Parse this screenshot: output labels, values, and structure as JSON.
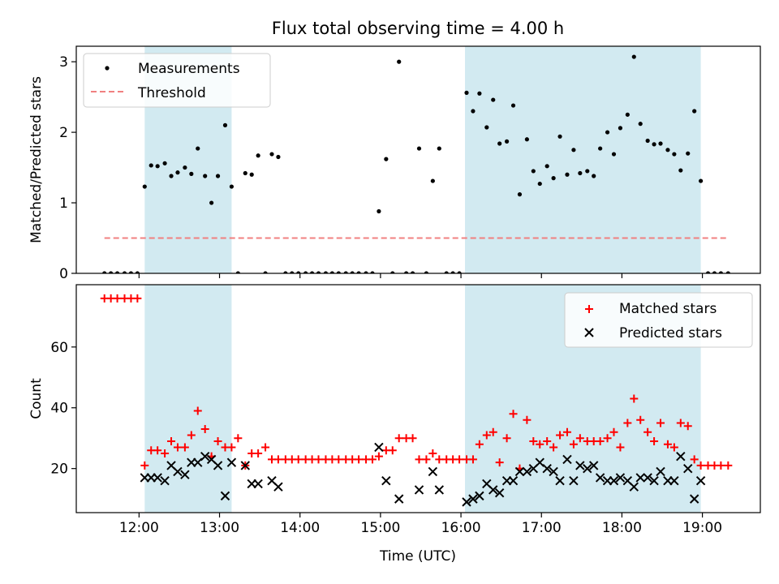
{
  "title": "Flux total observing time = 4.00 h",
  "x_axis": {
    "label": "Time (UTC)",
    "range_hours": [
      11.22,
      19.72
    ],
    "ticks": [
      {
        "hour": 12,
        "label": "12:00"
      },
      {
        "hour": 13,
        "label": "13:00"
      },
      {
        "hour": 14,
        "label": "14:00"
      },
      {
        "hour": 15,
        "label": "15:00"
      },
      {
        "hour": 16,
        "label": "16:00"
      },
      {
        "hour": 17,
        "label": "17:00"
      },
      {
        "hour": 18,
        "label": "18:00"
      },
      {
        "hour": 19,
        "label": "19:00"
      }
    ]
  },
  "shaded_color": "#add8e6",
  "chart_data": [
    {
      "type": "scatter",
      "ylabel": "Matched/Predicted stars",
      "ylim": [
        0,
        3.22
      ],
      "yticks": [
        0,
        1,
        2,
        3
      ],
      "legend": {
        "position": "top-left",
        "entries": [
          "Measurements",
          "Threshold"
        ]
      },
      "shaded_intervals": [
        [
          12.07,
          13.15
        ],
        [
          16.05,
          18.98
        ]
      ],
      "threshold": {
        "name": "Threshold",
        "value": 0.5,
        "x_range": [
          11.57,
          19.33
        ],
        "color": "#f08080"
      },
      "series": [
        {
          "name": "Measurements",
          "color": "#000000",
          "x": [
            11.57,
            11.65,
            11.73,
            11.82,
            11.9,
            11.98,
            12.07,
            12.15,
            12.23,
            12.32,
            12.4,
            12.48,
            12.57,
            12.65,
            12.73,
            12.82,
            12.9,
            12.98,
            13.07,
            13.15,
            13.23,
            13.32,
            13.4,
            13.48,
            13.57,
            13.65,
            13.73,
            13.82,
            13.9,
            13.98,
            14.07,
            14.15,
            14.23,
            14.32,
            14.4,
            14.48,
            14.57,
            14.65,
            14.73,
            14.82,
            14.9,
            14.98,
            15.07,
            15.15,
            15.23,
            15.32,
            15.4,
            15.48,
            15.57,
            15.65,
            15.73,
            15.82,
            15.9,
            15.98,
            16.07,
            16.15,
            16.23,
            16.32,
            16.4,
            16.48,
            16.57,
            16.65,
            16.73,
            16.82,
            16.9,
            16.98,
            17.07,
            17.15,
            17.23,
            17.32,
            17.4,
            17.48,
            17.57,
            17.65,
            17.73,
            17.82,
            17.9,
            17.98,
            18.07,
            18.15,
            18.23,
            18.32,
            18.4,
            18.48,
            18.57,
            18.65,
            18.73,
            18.82,
            18.9,
            18.98,
            19.07,
            19.15,
            19.23,
            19.32
          ],
          "y": [
            0,
            0,
            0,
            0,
            0,
            0,
            1.23,
            1.53,
            1.52,
            1.56,
            1.38,
            1.43,
            1.5,
            1.41,
            1.77,
            1.38,
            1.0,
            1.38,
            2.1,
            1.23,
            0,
            1.42,
            1.4,
            1.67,
            0,
            1.69,
            1.65,
            0,
            0,
            0,
            0,
            0,
            0,
            0,
            0,
            0,
            0,
            0,
            0,
            0,
            0,
            0.88,
            1.62,
            0,
            3.0,
            0,
            0,
            1.77,
            0,
            1.31,
            1.77,
            0,
            0,
            0,
            2.56,
            2.3,
            2.55,
            2.07,
            2.46,
            1.84,
            1.87,
            2.38,
            1.12,
            1.9,
            1.45,
            1.27,
            1.52,
            1.35,
            1.94,
            1.4,
            1.75,
            1.42,
            1.45,
            1.38,
            1.77,
            2.0,
            1.69,
            2.06,
            2.25,
            3.07,
            2.12,
            1.88,
            1.83,
            1.84,
            1.75,
            1.69,
            1.46,
            1.7,
            2.3,
            1.31,
            0,
            0,
            0,
            0
          ]
        }
      ]
    },
    {
      "type": "scatter",
      "xlabel": "Time (UTC)",
      "ylabel": "Count",
      "ylim": [
        5.5,
        80.5
      ],
      "yticks": [
        20,
        40,
        60
      ],
      "legend": {
        "position": "top-right",
        "entries": [
          "Matched stars",
          "Predicted stars"
        ]
      },
      "shaded_intervals": [
        [
          12.07,
          13.15
        ],
        [
          16.05,
          18.98
        ]
      ],
      "series": [
        {
          "name": "Matched stars",
          "color": "#ff0000",
          "marker": "+",
          "x": [
            11.57,
            11.65,
            11.73,
            11.82,
            11.9,
            11.98,
            12.07,
            12.15,
            12.23,
            12.32,
            12.4,
            12.48,
            12.57,
            12.65,
            12.73,
            12.82,
            12.9,
            12.98,
            13.07,
            13.15,
            13.23,
            13.32,
            13.4,
            13.48,
            13.57,
            13.65,
            13.73,
            13.82,
            13.9,
            13.98,
            14.07,
            14.15,
            14.23,
            14.32,
            14.4,
            14.48,
            14.57,
            14.65,
            14.73,
            14.82,
            14.9,
            14.98,
            15.07,
            15.15,
            15.23,
            15.32,
            15.4,
            15.48,
            15.57,
            15.65,
            15.73,
            15.82,
            15.9,
            15.98,
            16.07,
            16.15,
            16.23,
            16.32,
            16.4,
            16.48,
            16.57,
            16.65,
            16.73,
            16.82,
            16.9,
            16.98,
            17.07,
            17.15,
            17.23,
            17.32,
            17.4,
            17.48,
            17.57,
            17.65,
            17.73,
            17.82,
            17.9,
            17.98,
            18.07,
            18.15,
            18.23,
            18.32,
            18.4,
            18.48,
            18.57,
            18.65,
            18.73,
            18.82,
            18.9,
            18.98,
            19.07,
            19.15,
            19.23,
            19.32
          ],
          "y": [
            76,
            76,
            76,
            76,
            76,
            76,
            21,
            26,
            26,
            25,
            29,
            27,
            27,
            31,
            39,
            33,
            24,
            29,
            27,
            27,
            30,
            21,
            25,
            25,
            27,
            23,
            23,
            23,
            23,
            23,
            23,
            23,
            23,
            23,
            23,
            23,
            23,
            23,
            23,
            23,
            23,
            24,
            26,
            26,
            30,
            30,
            30,
            23,
            23,
            25,
            23,
            23,
            23,
            23,
            23,
            23,
            28,
            31,
            32,
            22,
            30,
            38,
            20,
            36,
            29,
            28,
            29,
            27,
            31,
            32,
            28,
            30,
            29,
            29,
            29,
            30,
            32,
            27,
            35,
            43,
            36,
            32,
            29,
            35,
            28,
            27,
            35,
            34,
            23,
            21,
            21,
            21,
            21,
            21
          ]
        },
        {
          "name": "Predicted stars",
          "color": "#000000",
          "marker": "x",
          "x": [
            12.07,
            12.15,
            12.23,
            12.32,
            12.4,
            12.48,
            12.57,
            12.65,
            12.73,
            12.82,
            12.9,
            12.98,
            13.07,
            13.15,
            13.32,
            13.4,
            13.48,
            13.65,
            13.73,
            14.98,
            15.07,
            15.23,
            15.48,
            15.65,
            15.73,
            16.07,
            16.15,
            16.23,
            16.32,
            16.4,
            16.48,
            16.57,
            16.65,
            16.73,
            16.82,
            16.9,
            16.98,
            17.07,
            17.15,
            17.23,
            17.32,
            17.4,
            17.48,
            17.57,
            17.65,
            17.73,
            17.82,
            17.9,
            17.98,
            18.07,
            18.15,
            18.23,
            18.32,
            18.4,
            18.48,
            18.57,
            18.65,
            18.73,
            18.82,
            18.9,
            18.98
          ],
          "y": [
            17,
            17,
            17,
            16,
            21,
            19,
            18,
            22,
            22,
            24,
            23,
            21,
            11,
            22,
            21,
            15,
            15,
            16,
            14,
            27,
            16,
            10,
            13,
            19,
            13,
            9,
            10,
            11,
            15,
            13,
            12,
            16,
            16,
            19,
            19,
            20,
            22,
            20,
            19,
            16,
            23,
            16,
            21,
            20,
            21,
            17,
            16,
            16,
            17,
            16,
            14,
            17,
            17,
            16,
            19,
            16,
            16,
            24,
            20,
            10,
            16
          ]
        }
      ]
    }
  ]
}
